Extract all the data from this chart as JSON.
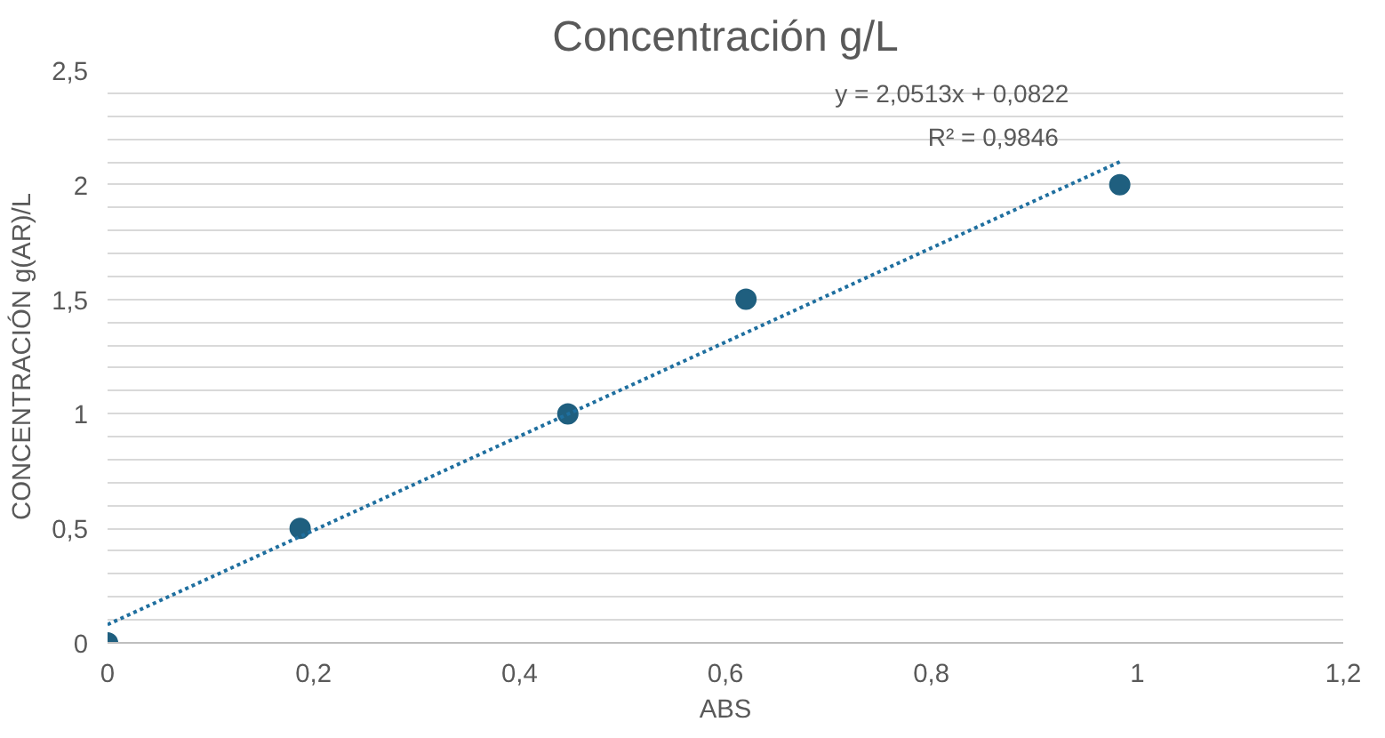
{
  "chart_data": {
    "type": "scatter",
    "title": "Concentración g/L",
    "xlabel": "ABS",
    "ylabel": "CONCENTRACIÓN g(AR)/L",
    "xlim": [
      0,
      1.2
    ],
    "ylim": [
      0,
      2.5
    ],
    "xticks": [
      0,
      {
        "value": 0.2,
        "label": "0,2"
      },
      {
        "value": 0.4,
        "label": "0,4"
      },
      {
        "value": 0.6,
        "label": "0,6"
      },
      {
        "value": 0.8,
        "label": "0,8"
      },
      1,
      {
        "value": 1.2,
        "label": "1,2"
      }
    ],
    "yticks": [
      0,
      {
        "value": 0.1,
        "label": null
      },
      {
        "value": 0.2,
        "label": null
      },
      {
        "value": 0.3,
        "label": null
      },
      {
        "value": 0.4,
        "label": null
      },
      {
        "value": 0.5,
        "label": "0,5"
      },
      {
        "value": 0.6,
        "label": null
      },
      {
        "value": 0.7,
        "label": null
      },
      {
        "value": 0.8,
        "label": null
      },
      {
        "value": 0.9,
        "label": null
      },
      1,
      {
        "value": 1.1,
        "label": null
      },
      {
        "value": 1.2,
        "label": null
      },
      {
        "value": 1.3,
        "label": null
      },
      {
        "value": 1.4,
        "label": null
      },
      {
        "value": 1.5,
        "label": "1,5"
      },
      {
        "value": 1.6,
        "label": null
      },
      {
        "value": 1.7,
        "label": null
      },
      {
        "value": 1.8,
        "label": null
      },
      {
        "value": 1.9,
        "label": null
      },
      2,
      {
        "value": 2.1,
        "label": null
      },
      {
        "value": 2.2,
        "label": null
      },
      {
        "value": 2.3,
        "label": null
      },
      {
        "value": 2.4,
        "label": null
      },
      {
        "value": 2.5,
        "label": "2,5"
      }
    ],
    "grid": "y",
    "series": [
      {
        "color": "#1f5f7f",
        "marker": "circle",
        "x": [
          0,
          0.187,
          0.447,
          0.62,
          0.983
        ],
        "values": [
          0,
          0.5,
          1,
          1.5,
          2
        ]
      },
      {
        "type": "line",
        "color": "#1f6f9f",
        "marker": "none",
        "line_style": "dotted",
        "x": [
          0,
          0.983
        ],
        "values": [
          0.08,
          2.1
        ]
      }
    ],
    "annotations": [
      "y = 2,0513x + 0,0822",
      "R² = 0,9846"
    ]
  }
}
